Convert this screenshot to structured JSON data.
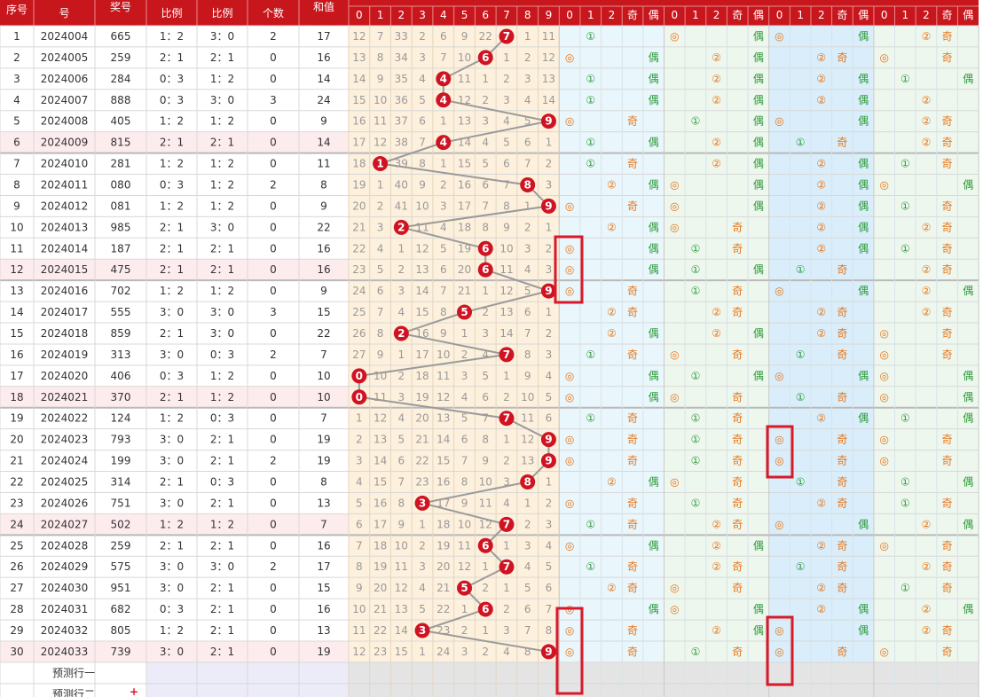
{
  "header": {
    "cols": [
      "序号",
      "号",
      "奖号",
      "比例",
      "比例",
      "个数",
      "和值"
    ],
    "digits": [
      0,
      1,
      2,
      3,
      4,
      5,
      6,
      7,
      8,
      9
    ],
    "route_header": [
      [
        0,
        1,
        2,
        "奇",
        "偶"
      ],
      [
        0,
        1,
        2,
        "奇",
        "偶"
      ],
      [
        0,
        1,
        2,
        "奇",
        "偶"
      ],
      [
        0,
        1,
        2,
        "奇",
        "偶"
      ]
    ]
  },
  "rows": [
    {
      "seq": 1,
      "issue": "2024004",
      "num": "665",
      "oe": "1：2",
      "bs": "3：0",
      "rep": 2,
      "sum": 17,
      "ball": 7,
      "miss": [
        12,
        7,
        33,
        2,
        6,
        9,
        22,
        null,
        1,
        11
      ],
      "g": [
        [
          1,
          "①"
        ],
        [
          0,
          "◎",
          "偶"
        ],
        [
          0,
          "◎",
          "偶"
        ],
        [
          2,
          "②",
          "奇"
        ]
      ]
    },
    {
      "seq": 2,
      "issue": "2024005",
      "num": "259",
      "oe": "2：1",
      "bs": "2：1",
      "rep": 0,
      "sum": 16,
      "ball": 6,
      "miss": [
        13,
        8,
        34,
        3,
        7,
        10,
        null,
        1,
        2,
        12
      ],
      "g": [
        [
          0,
          "◎",
          "偶"
        ],
        [
          2,
          "②",
          "偶"
        ],
        [
          2,
          "②",
          "奇"
        ],
        [
          0,
          "◎",
          "奇"
        ]
      ]
    },
    {
      "seq": 3,
      "issue": "2024006",
      "num": "284",
      "oe": "0：3",
      "bs": "1：2",
      "rep": 0,
      "sum": 14,
      "ball": 4,
      "miss": [
        14,
        9,
        35,
        4,
        null,
        11,
        1,
        2,
        3,
        13
      ],
      "g": [
        [
          1,
          "①",
          "偶"
        ],
        [
          2,
          "②",
          "偶"
        ],
        [
          2,
          "②",
          "偶"
        ],
        [
          1,
          "①",
          "偶"
        ]
      ]
    },
    {
      "seq": 4,
      "issue": "2024007",
      "num": "888",
      "oe": "0：3",
      "bs": "3：0",
      "rep": 3,
      "sum": 24,
      "ball": 4,
      "miss": [
        15,
        10,
        36,
        5,
        null,
        12,
        2,
        3,
        4,
        14
      ],
      "g": [
        [
          1,
          "①",
          "偶"
        ],
        [
          2,
          "②",
          "偶"
        ],
        [
          2,
          "②",
          "偶"
        ],
        [
          2,
          "②"
        ]
      ]
    },
    {
      "seq": 5,
      "issue": "2024008",
      "num": "405",
      "oe": "1：2",
      "bs": "1：2",
      "rep": 0,
      "sum": 9,
      "ball": 9,
      "miss": [
        16,
        11,
        37,
        6,
        1,
        13,
        3,
        4,
        5,
        null
      ],
      "g": [
        [
          0,
          "◎",
          "奇"
        ],
        [
          1,
          "①",
          "偶"
        ],
        [
          0,
          "◎",
          "偶"
        ],
        [
          2,
          "②",
          "奇"
        ]
      ]
    },
    {
      "seq": 6,
      "issue": "2024009",
      "num": "815",
      "oe": "2：1",
      "bs": "2：1",
      "rep": 0,
      "sum": 14,
      "ball": 4,
      "miss": [
        17,
        12,
        38,
        7,
        null,
        14,
        4,
        5,
        6,
        1
      ],
      "g": [
        [
          1,
          "①",
          "偶"
        ],
        [
          2,
          "②",
          "偶"
        ],
        [
          1,
          "①",
          "奇"
        ],
        [
          2,
          "②",
          "奇"
        ]
      ]
    },
    {
      "seq": 7,
      "issue": "2024010",
      "num": "281",
      "oe": "1：2",
      "bs": "1：2",
      "rep": 0,
      "sum": 11,
      "ball": 1,
      "miss": [
        18,
        null,
        39,
        8,
        1,
        15,
        5,
        6,
        7,
        2
      ],
      "g": [
        [
          1,
          "①",
          "奇"
        ],
        [
          2,
          "②",
          "偶"
        ],
        [
          2,
          "②",
          "偶"
        ],
        [
          1,
          "①",
          "奇"
        ]
      ]
    },
    {
      "seq": 8,
      "issue": "2024011",
      "num": "080",
      "oe": "0：3",
      "bs": "1：2",
      "rep": 2,
      "sum": 8,
      "ball": 8,
      "miss": [
        19,
        1,
        40,
        9,
        2,
        16,
        6,
        7,
        null,
        3
      ],
      "g": [
        [
          2,
          "②",
          "偶"
        ],
        [
          0,
          "◎",
          "偶"
        ],
        [
          2,
          "②",
          "偶"
        ],
        [
          0,
          "◎",
          "偶"
        ]
      ]
    },
    {
      "seq": 9,
      "issue": "2024012",
      "num": "081",
      "oe": "1：2",
      "bs": "1：2",
      "rep": 0,
      "sum": 9,
      "ball": 9,
      "miss": [
        20,
        2,
        41,
        10,
        3,
        17,
        7,
        8,
        1,
        null
      ],
      "g": [
        [
          0,
          "◎",
          "奇"
        ],
        [
          0,
          "◎",
          "偶"
        ],
        [
          2,
          "②",
          "偶"
        ],
        [
          1,
          "①",
          "奇"
        ]
      ]
    },
    {
      "seq": 10,
      "issue": "2024013",
      "num": "985",
      "oe": "2：1",
      "bs": "3：0",
      "rep": 0,
      "sum": 22,
      "ball": 2,
      "miss": [
        21,
        3,
        null,
        11,
        4,
        18,
        8,
        9,
        2,
        1
      ],
      "g": [
        [
          2,
          "②",
          "偶"
        ],
        [
          0,
          "◎",
          "奇"
        ],
        [
          2,
          "②",
          "偶"
        ],
        [
          2,
          "②",
          "奇"
        ]
      ]
    },
    {
      "seq": 11,
      "issue": "2024014",
      "num": "187",
      "oe": "2：1",
      "bs": "2：1",
      "rep": 0,
      "sum": 16,
      "ball": 6,
      "miss": [
        22,
        4,
        1,
        12,
        5,
        19,
        null,
        10,
        3,
        2
      ],
      "g": [
        [
          0,
          "◎",
          "偶"
        ],
        [
          1,
          "①",
          "奇"
        ],
        [
          2,
          "②",
          "偶"
        ],
        [
          1,
          "①",
          "奇"
        ]
      ]
    },
    {
      "seq": 12,
      "issue": "2024015",
      "num": "475",
      "oe": "2：1",
      "bs": "2：1",
      "rep": 0,
      "sum": 16,
      "ball": 6,
      "miss": [
        23,
        5,
        2,
        13,
        6,
        20,
        null,
        11,
        4,
        3
      ],
      "g": [
        [
          0,
          "◎",
          "偶"
        ],
        [
          1,
          "①",
          "偶"
        ],
        [
          1,
          "①",
          "奇"
        ],
        [
          2,
          "②",
          "奇"
        ]
      ]
    },
    {
      "seq": 13,
      "issue": "2024016",
      "num": "702",
      "oe": "1：2",
      "bs": "1：2",
      "rep": 0,
      "sum": 9,
      "ball": 9,
      "miss": [
        24,
        6,
        3,
        14,
        7,
        21,
        1,
        12,
        5,
        null
      ],
      "g": [
        [
          0,
          "◎",
          "奇"
        ],
        [
          1,
          "①",
          "奇"
        ],
        [
          0,
          "◎",
          "偶"
        ],
        [
          2,
          "②",
          "偶"
        ]
      ]
    },
    {
      "seq": 14,
      "issue": "2024017",
      "num": "555",
      "oe": "3：0",
      "bs": "3：0",
      "rep": 3,
      "sum": 15,
      "ball": 5,
      "miss": [
        25,
        7,
        4,
        15,
        8,
        null,
        2,
        13,
        6,
        1
      ],
      "g": [
        [
          2,
          "②",
          "奇"
        ],
        [
          2,
          "②",
          "奇"
        ],
        [
          2,
          "②",
          "奇"
        ],
        [
          2,
          "②",
          "奇"
        ]
      ]
    },
    {
      "seq": 15,
      "issue": "2024018",
      "num": "859",
      "oe": "2：1",
      "bs": "3：0",
      "rep": 0,
      "sum": 22,
      "ball": 2,
      "miss": [
        26,
        8,
        null,
        16,
        9,
        1,
        3,
        14,
        7,
        2
      ],
      "g": [
        [
          2,
          "②",
          "偶"
        ],
        [
          2,
          "②",
          "偶"
        ],
        [
          2,
          "②",
          "奇"
        ],
        [
          0,
          "◎",
          "奇"
        ]
      ]
    },
    {
      "seq": 16,
      "issue": "2024019",
      "num": "313",
      "oe": "3：0",
      "bs": "0：3",
      "rep": 2,
      "sum": 7,
      "ball": 7,
      "miss": [
        27,
        9,
        1,
        17,
        10,
        2,
        4,
        null,
        8,
        3
      ],
      "g": [
        [
          1,
          "①",
          "奇"
        ],
        [
          0,
          "◎",
          "奇"
        ],
        [
          1,
          "①",
          "奇"
        ],
        [
          0,
          "◎",
          "奇"
        ]
      ]
    },
    {
      "seq": 17,
      "issue": "2024020",
      "num": "406",
      "oe": "0：3",
      "bs": "1：2",
      "rep": 0,
      "sum": 10,
      "ball": 0,
      "miss": [
        null,
        10,
        2,
        18,
        11,
        3,
        5,
        1,
        9,
        4
      ],
      "g": [
        [
          0,
          "◎",
          "偶"
        ],
        [
          1,
          "①",
          "偶"
        ],
        [
          0,
          "◎",
          "偶"
        ],
        [
          0,
          "◎",
          "偶"
        ]
      ]
    },
    {
      "seq": 18,
      "issue": "2024021",
      "num": "370",
      "oe": "2：1",
      "bs": "1：2",
      "rep": 0,
      "sum": 10,
      "ball": 0,
      "miss": [
        null,
        11,
        3,
        19,
        12,
        4,
        6,
        2,
        10,
        5
      ],
      "g": [
        [
          0,
          "◎",
          "偶"
        ],
        [
          0,
          "◎",
          "奇"
        ],
        [
          1,
          "①",
          "奇"
        ],
        [
          0,
          "◎",
          "偶"
        ]
      ]
    },
    {
      "seq": 19,
      "issue": "2024022",
      "num": "124",
      "oe": "1：2",
      "bs": "0：3",
      "rep": 0,
      "sum": 7,
      "ball": 7,
      "miss": [
        1,
        12,
        4,
        20,
        13,
        5,
        7,
        null,
        11,
        6
      ],
      "g": [
        [
          1,
          "①",
          "奇"
        ],
        [
          1,
          "①",
          "奇"
        ],
        [
          2,
          "②",
          "偶"
        ],
        [
          1,
          "①",
          "偶"
        ]
      ]
    },
    {
      "seq": 20,
      "issue": "2024023",
      "num": "793",
      "oe": "3：0",
      "bs": "2：1",
      "rep": 0,
      "sum": 19,
      "ball": 9,
      "miss": [
        2,
        13,
        5,
        21,
        14,
        6,
        8,
        1,
        12,
        null
      ],
      "g": [
        [
          0,
          "◎",
          "奇"
        ],
        [
          1,
          "①",
          "奇"
        ],
        [
          0,
          "◎",
          "奇"
        ],
        [
          0,
          "◎",
          "奇"
        ]
      ]
    },
    {
      "seq": 21,
      "issue": "2024024",
      "num": "199",
      "oe": "3：0",
      "bs": "2：1",
      "rep": 2,
      "sum": 19,
      "ball": 9,
      "miss": [
        3,
        14,
        6,
        22,
        15,
        7,
        9,
        2,
        13,
        null
      ],
      "g": [
        [
          0,
          "◎",
          "奇"
        ],
        [
          1,
          "①",
          "奇"
        ],
        [
          0,
          "◎",
          "奇"
        ],
        [
          0,
          "◎",
          "奇"
        ]
      ]
    },
    {
      "seq": 22,
      "issue": "2024025",
      "num": "314",
      "oe": "2：1",
      "bs": "0：3",
      "rep": 0,
      "sum": 8,
      "ball": 8,
      "miss": [
        4,
        15,
        7,
        23,
        16,
        8,
        10,
        3,
        null,
        1
      ],
      "g": [
        [
          2,
          "②",
          "偶"
        ],
        [
          0,
          "◎",
          "奇"
        ],
        [
          1,
          "①",
          "奇"
        ],
        [
          1,
          "①",
          "偶"
        ]
      ]
    },
    {
      "seq": 23,
      "issue": "2024026",
      "num": "751",
      "oe": "3：0",
      "bs": "2：1",
      "rep": 0,
      "sum": 13,
      "ball": 3,
      "miss": [
        5,
        16,
        8,
        null,
        17,
        9,
        11,
        4,
        1,
        2
      ],
      "g": [
        [
          0,
          "◎",
          "奇"
        ],
        [
          1,
          "①",
          "奇"
        ],
        [
          2,
          "②",
          "奇"
        ],
        [
          1,
          "①",
          "奇"
        ]
      ]
    },
    {
      "seq": 24,
      "issue": "2024027",
      "num": "502",
      "oe": "1：2",
      "bs": "1：2",
      "rep": 0,
      "sum": 7,
      "ball": 7,
      "miss": [
        6,
        17,
        9,
        1,
        18,
        10,
        12,
        null,
        2,
        3
      ],
      "g": [
        [
          1,
          "①",
          "奇"
        ],
        [
          2,
          "②",
          "奇"
        ],
        [
          0,
          "◎",
          "偶"
        ],
        [
          2,
          "②",
          "偶"
        ]
      ]
    },
    {
      "seq": 25,
      "issue": "2024028",
      "num": "259",
      "oe": "2：1",
      "bs": "2：1",
      "rep": 0,
      "sum": 16,
      "ball": 6,
      "miss": [
        7,
        18,
        10,
        2,
        19,
        11,
        null,
        1,
        3,
        4
      ],
      "g": [
        [
          0,
          "◎",
          "偶"
        ],
        [
          2,
          "②",
          "偶"
        ],
        [
          2,
          "②",
          "奇"
        ],
        [
          0,
          "◎",
          "奇"
        ]
      ]
    },
    {
      "seq": 26,
      "issue": "2024029",
      "num": "575",
      "oe": "3：0",
      "bs": "3：0",
      "rep": 2,
      "sum": 17,
      "ball": 7,
      "miss": [
        8,
        19,
        11,
        3,
        20,
        12,
        1,
        null,
        4,
        5
      ],
      "g": [
        [
          1,
          "①",
          "奇"
        ],
        [
          2,
          "②",
          "奇"
        ],
        [
          1,
          "①",
          "奇"
        ],
        [
          2,
          "②",
          "奇"
        ]
      ]
    },
    {
      "seq": 27,
      "issue": "2024030",
      "num": "951",
      "oe": "3：0",
      "bs": "2：1",
      "rep": 0,
      "sum": 15,
      "ball": 5,
      "miss": [
        9,
        20,
        12,
        4,
        21,
        null,
        2,
        1,
        5,
        6
      ],
      "g": [
        [
          2,
          "②",
          "奇"
        ],
        [
          0,
          "◎",
          "奇"
        ],
        [
          2,
          "②",
          "奇"
        ],
        [
          1,
          "①",
          "奇"
        ]
      ]
    },
    {
      "seq": 28,
      "issue": "2024031",
      "num": "682",
      "oe": "0：3",
      "bs": "2：1",
      "rep": 0,
      "sum": 16,
      "ball": 6,
      "miss": [
        10,
        21,
        13,
        5,
        22,
        1,
        null,
        2,
        6,
        7
      ],
      "g": [
        [
          0,
          "◎",
          "偶"
        ],
        [
          0,
          "◎",
          "偶"
        ],
        [
          2,
          "②",
          "偶"
        ],
        [
          2,
          "②",
          "偶"
        ]
      ]
    },
    {
      "seq": 29,
      "issue": "2024032",
      "num": "805",
      "oe": "1：2",
      "bs": "2：1",
      "rep": 0,
      "sum": 13,
      "ball": 3,
      "miss": [
        11,
        22,
        14,
        null,
        23,
        2,
        1,
        3,
        7,
        8
      ],
      "g": [
        [
          0,
          "◎",
          "奇"
        ],
        [
          2,
          "②",
          "偶"
        ],
        [
          0,
          "◎",
          "偶"
        ],
        [
          2,
          "②",
          "奇"
        ]
      ]
    },
    {
      "seq": 30,
      "issue": "2024033",
      "num": "739",
      "oe": "3：0",
      "bs": "2：1",
      "rep": 0,
      "sum": 19,
      "ball": 9,
      "miss": [
        12,
        23,
        15,
        1,
        24,
        3,
        2,
        4,
        8,
        null
      ],
      "g": [
        [
          0,
          "◎",
          "奇"
        ],
        [
          1,
          "①",
          "奇"
        ],
        [
          0,
          "◎",
          "奇"
        ],
        [
          0,
          "◎",
          "奇"
        ]
      ]
    }
  ],
  "predict": [
    "预测行一",
    "预测行二"
  ],
  "predict_add": "+"
}
